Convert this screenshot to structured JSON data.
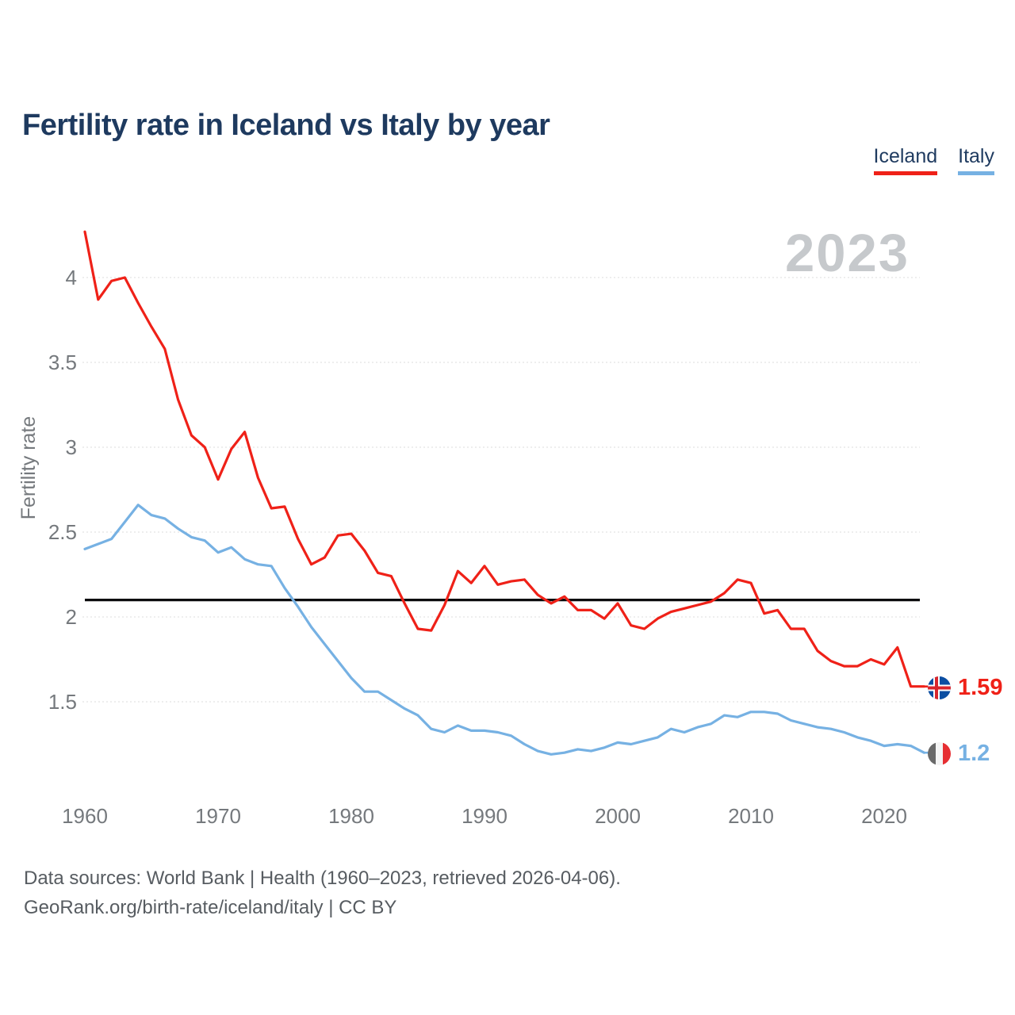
{
  "title": "Fertility rate in Iceland vs Italy by year",
  "watermark": "2023",
  "legend": [
    {
      "label": "Iceland",
      "color": "#ef2118"
    },
    {
      "label": "Italy",
      "color": "#76b1e3"
    }
  ],
  "end_labels": [
    {
      "country": "Iceland",
      "value": "1.59"
    },
    {
      "country": "Italy",
      "value": "1.2"
    }
  ],
  "footer": {
    "line1": "Data sources: World Bank | Health (1960–2023, retrieved 2026-04-06).",
    "line2": "GeoRank.org/birth-rate/iceland/italy | CC BY"
  },
  "colors": {
    "iceland_line": "#ef2118",
    "italy_line": "#76b1e3",
    "title_text": "#1e3a5f",
    "axis_text": "#75797d",
    "watermark_text": "#c6c9cc",
    "reference_line": "#0c0c0e"
  },
  "chart_data": {
    "type": "line",
    "title": "Fertility rate in Iceland vs Italy by year",
    "ylabel": "Fertility rate",
    "xlabel": "",
    "x": [
      1960,
      1961,
      1962,
      1963,
      1964,
      1965,
      1966,
      1967,
      1968,
      1969,
      1970,
      1971,
      1972,
      1973,
      1974,
      1975,
      1976,
      1977,
      1978,
      1979,
      1980,
      1981,
      1982,
      1983,
      1984,
      1985,
      1986,
      1987,
      1988,
      1989,
      1990,
      1991,
      1992,
      1993,
      1994,
      1995,
      1996,
      1997,
      1998,
      1999,
      2000,
      2001,
      2002,
      2003,
      2004,
      2005,
      2006,
      2007,
      2008,
      2009,
      2010,
      2011,
      2012,
      2013,
      2014,
      2015,
      2016,
      2017,
      2018,
      2019,
      2020,
      2021,
      2022,
      2023
    ],
    "series": [
      {
        "name": "Iceland",
        "color": "#ef2118",
        "values": [
          4.27,
          3.87,
          3.98,
          4.0,
          3.85,
          3.71,
          3.58,
          3.28,
          3.07,
          3.0,
          2.81,
          2.99,
          3.09,
          2.82,
          2.64,
          2.65,
          2.46,
          2.31,
          2.35,
          2.48,
          2.49,
          2.39,
          2.26,
          2.24,
          2.08,
          1.93,
          1.92,
          2.07,
          2.27,
          2.2,
          2.3,
          2.19,
          2.21,
          2.22,
          2.13,
          2.08,
          2.12,
          2.04,
          2.04,
          1.99,
          2.08,
          1.95,
          1.93,
          1.99,
          2.03,
          2.05,
          2.07,
          2.09,
          2.14,
          2.22,
          2.2,
          2.02,
          2.04,
          1.93,
          1.93,
          1.8,
          1.74,
          1.71,
          1.71,
          1.75,
          1.72,
          1.82,
          1.59,
          1.59
        ]
      },
      {
        "name": "Italy",
        "color": "#76b1e3",
        "values": [
          2.4,
          2.43,
          2.46,
          2.56,
          2.66,
          2.6,
          2.58,
          2.52,
          2.47,
          2.45,
          2.38,
          2.41,
          2.34,
          2.31,
          2.3,
          2.17,
          2.06,
          1.94,
          1.84,
          1.74,
          1.64,
          1.56,
          1.56,
          1.51,
          1.46,
          1.42,
          1.34,
          1.32,
          1.36,
          1.33,
          1.33,
          1.32,
          1.3,
          1.25,
          1.21,
          1.19,
          1.2,
          1.22,
          1.21,
          1.23,
          1.26,
          1.25,
          1.27,
          1.29,
          1.34,
          1.32,
          1.35,
          1.37,
          1.42,
          1.41,
          1.44,
          1.44,
          1.43,
          1.39,
          1.37,
          1.35,
          1.34,
          1.32,
          1.29,
          1.27,
          1.24,
          1.25,
          1.24,
          1.2
        ]
      }
    ],
    "reference_line": 2.1,
    "xlim": [
      1960,
      2023
    ],
    "ylim": [
      1.1,
      4.35
    ],
    "yticks": [
      1.5,
      2,
      2.5,
      3,
      3.5,
      4
    ],
    "xticks": [
      1960,
      1970,
      1980,
      1990,
      2000,
      2010,
      2020
    ],
    "grid": "horizontal-dotted",
    "legend_position": "top-right",
    "end_values": {
      "Iceland": 1.59,
      "Italy": 1.2
    }
  }
}
